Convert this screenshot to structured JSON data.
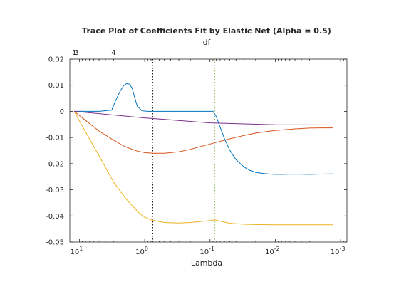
{
  "chart_data": {
    "type": "line",
    "title": "Trace Plot of Coefficients Fit by Elastic Net (Alpha = 0.5)",
    "top_axis_label": "df",
    "xlabel": "Lambda",
    "ylabel": "",
    "x_scale": "log",
    "x_reversed": true,
    "xlim": [
      14,
      0.0008
    ],
    "ylim": [
      -0.05,
      0.02
    ],
    "grid": false,
    "x_ticks": [
      {
        "value": 10,
        "base": "10",
        "exp": "1"
      },
      {
        "value": 1,
        "base": "10",
        "exp": "0"
      },
      {
        "value": 0.1,
        "base": "10",
        "exp": "-1"
      },
      {
        "value": 0.01,
        "base": "10",
        "exp": "-2"
      },
      {
        "value": 0.001,
        "base": "10",
        "exp": "-3"
      }
    ],
    "y_ticks": [
      {
        "value": 0.02,
        "label": "0.02"
      },
      {
        "value": 0.01,
        "label": "0.01"
      },
      {
        "value": 0,
        "label": "0"
      },
      {
        "value": -0.01,
        "label": "-0.01"
      },
      {
        "value": -0.02,
        "label": "-0.02"
      },
      {
        "value": -0.03,
        "label": "-0.03"
      },
      {
        "value": -0.04,
        "label": "-0.04"
      },
      {
        "value": -0.05,
        "label": "-0.05"
      }
    ],
    "top_ticks": [
      {
        "value": 12,
        "label": "1"
      },
      {
        "value": 11,
        "label": "3"
      },
      {
        "value": 3,
        "label": "4"
      }
    ],
    "vlines": [
      {
        "x": 0.75,
        "color": "#1a1a1a"
      },
      {
        "x": 0.085,
        "color": "#77ac30"
      }
    ],
    "series": [
      {
        "color": "#0072bd",
        "x": [
          12,
          5,
          3.2,
          2.8,
          2.4,
          2.1,
          1.9,
          1.7,
          1.55,
          1.45,
          1.3,
          1.1,
          0.9,
          0.5,
          0.2,
          0.1,
          0.09,
          0.08,
          0.07,
          0.06,
          0.05,
          0.04,
          0.03,
          0.025,
          0.02,
          0.015,
          0.012,
          0.01,
          0.008,
          0.005,
          0.003,
          0.002,
          0.0013
        ],
        "y": [
          0,
          0,
          0.0005,
          0.004,
          0.0075,
          0.0098,
          0.0106,
          0.0104,
          0.0088,
          0.006,
          0.002,
          0.0002,
          0,
          0,
          0,
          0,
          0,
          -0.002,
          -0.006,
          -0.0105,
          -0.0148,
          -0.0185,
          -0.0213,
          -0.0225,
          -0.0233,
          -0.0238,
          -0.024,
          -0.0241,
          -0.0241,
          -0.024,
          -0.0241,
          -0.024,
          -0.0239
        ]
      },
      {
        "color": "#d95319",
        "x": [
          12,
          8,
          5,
          3,
          2,
          1.3,
          1,
          0.75,
          0.5,
          0.3,
          0.2,
          0.1,
          0.05,
          0.03,
          0.02,
          0.01,
          0.005,
          0.003,
          0.002,
          0.0013
        ],
        "y": [
          0,
          -0.0035,
          -0.0075,
          -0.011,
          -0.0135,
          -0.0152,
          -0.0158,
          -0.016,
          -0.016,
          -0.0155,
          -0.0145,
          -0.0125,
          -0.0105,
          -0.0092,
          -0.0083,
          -0.0073,
          -0.0067,
          -0.0064,
          -0.0063,
          -0.0063
        ]
      },
      {
        "color": "#edb120",
        "x": [
          12,
          8,
          5,
          3,
          2,
          1.5,
          1.2,
          1,
          0.8,
          0.65,
          0.5,
          0.3,
          0.2,
          0.15,
          0.1,
          0.085,
          0.07,
          0.05,
          0.03,
          0.02,
          0.01,
          0.005,
          0.003,
          0.002,
          0.0013
        ],
        "y": [
          0,
          -0.008,
          -0.017,
          -0.027,
          -0.033,
          -0.0365,
          -0.039,
          -0.0405,
          -0.0415,
          -0.042,
          -0.0425,
          -0.0427,
          -0.0425,
          -0.0422,
          -0.0418,
          -0.0415,
          -0.042,
          -0.0428,
          -0.0432,
          -0.0433,
          -0.0434,
          -0.0434,
          -0.0434,
          -0.0434,
          -0.0434
        ]
      },
      {
        "color": "#7e2f8e",
        "x": [
          12,
          1,
          0.1,
          0.01,
          0.0013
        ],
        "y": [
          0,
          -0.0025,
          -0.0044,
          -0.0051,
          -0.0052
        ]
      }
    ]
  }
}
